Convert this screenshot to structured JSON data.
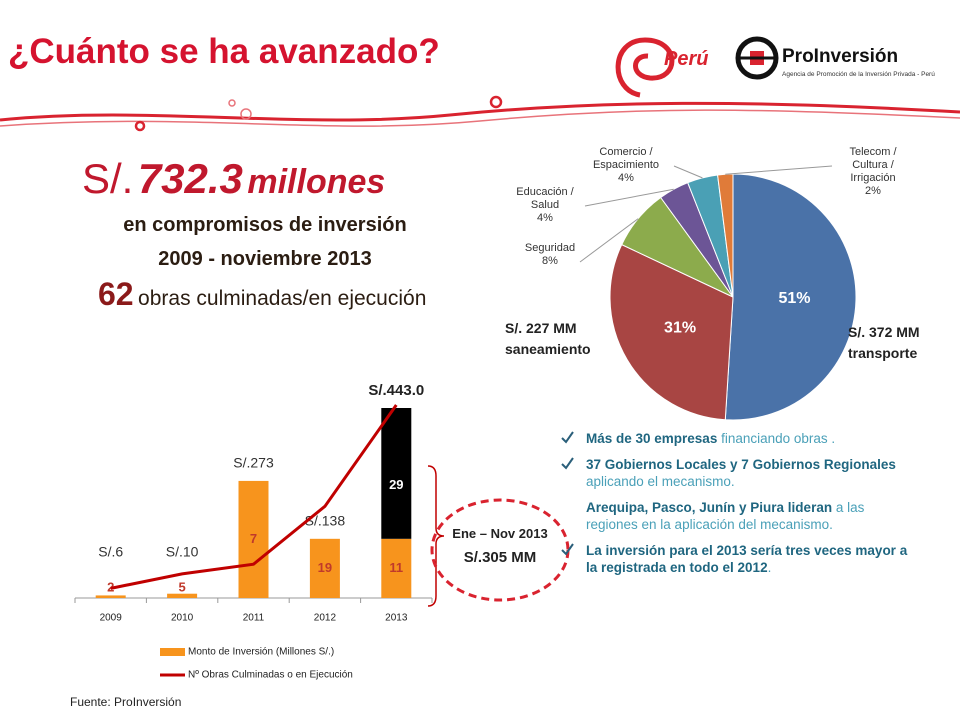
{
  "header": {
    "title": "¿Cuánto se ha avanzado?",
    "logo_peru": "Perú",
    "logo_brand": "ProInversión",
    "logo_tagline": "Agencia de Promoción de la Inversión Privada - Perú"
  },
  "summary": {
    "currency": "S/.",
    "amount": "732.3",
    "unit": "millones",
    "line1": "en compromisos de inversión",
    "line2": "2009 - noviembre 2013",
    "works_count": "62",
    "works_text": "obras culminadas/en ejecución"
  },
  "chart_data": [
    {
      "type": "bar",
      "categories": [
        "2009",
        "2010",
        "2011",
        "2012",
        "2013"
      ],
      "series": [
        {
          "name": "Monto de Inversión (Millones S/.)",
          "color": "#f7941d",
          "values": [
            6,
            10,
            273,
            138,
            138
          ],
          "value_labels": [
            "S/.6",
            "S/.10",
            "S/.273",
            "S/.138",
            null
          ],
          "counts": [
            2,
            5,
            7,
            19,
            11
          ]
        },
        {
          "color": "#000000",
          "values": [
            null,
            null,
            null,
            null,
            305
          ],
          "counts": [
            null,
            null,
            null,
            null,
            29
          ]
        },
        {
          "name": "Nº Obras Culminadas o en Ejecución",
          "type": "line",
          "color": "#c00000",
          "axis": "y2",
          "values": [
            2,
            5,
            7,
            19,
            40
          ]
        }
      ],
      "total_label": "S/.443.0",
      "ylim": [
        0,
        450
      ],
      "y2lim": [
        0,
        40
      ],
      "annotation": {
        "period": "Ene – Nov 2013",
        "amount": "S/.305 MM"
      }
    },
    {
      "type": "pie",
      "categories": [
        null,
        null,
        "Seguridad",
        "Educación / Salud",
        "Comercio / Espacimiento",
        "Telecom / Cultura / Irrigación"
      ],
      "values": [
        51,
        31,
        8,
        4,
        4,
        2
      ],
      "value_labels": [
        "51%",
        "31%",
        "8%",
        "4%",
        "4%",
        "2%"
      ],
      "colors": [
        "#4a72a8",
        "#a84543",
        "#8cab4c",
        "#6c5596",
        "#4aa0b5",
        "#e07b39"
      ],
      "annotations": [
        {
          "amount": "S/. 372 MM",
          "label": "transporte"
        },
        {
          "amount": "S/. 227 MM",
          "label": "saneamiento"
        }
      ]
    }
  ],
  "bullets": [
    {
      "check": true,
      "bold": "Más de 30 empresas",
      "text": " financiando obras ."
    },
    {
      "check": true,
      "bold": "37 Gobiernos Locales y 7 Gobiernos Regionales",
      "text": " aplicando el mecanismo."
    },
    {
      "check": false,
      "bold": "Arequipa, Pasco, Junín y Piura lideran",
      "text": " a las regiones  en la aplicación del mecanismo."
    },
    {
      "check": true,
      "bold": "La inversión para el 2013 sería tres veces mayor a la registrada en todo el 2012",
      "text": "."
    }
  ],
  "source": "Fuente: ProInversión"
}
